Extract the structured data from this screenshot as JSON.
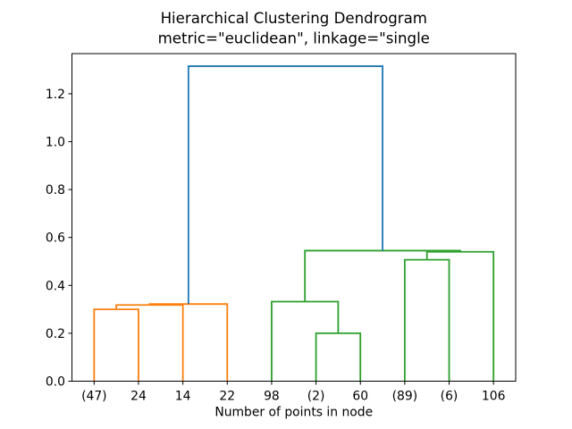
{
  "figure": {
    "title": "Hierarchical Clustering Dendrogram",
    "subtitle": "metric=\"euclidean\", linkage=\"single",
    "xlabel": "Number of points in node"
  },
  "chart_data": {
    "type": "dendrogram",
    "title": "Hierarchical Clustering Dendrogram",
    "subtitle": "metric=\"euclidean\", linkage=\"single",
    "xlabel": "Number of points in node",
    "ylabel": "",
    "ylim": [
      0,
      1.3675
    ],
    "yticks": [
      0.0,
      0.2,
      0.4,
      0.6,
      0.8,
      1.0,
      1.2
    ],
    "ytick_labels": [
      "0.0",
      "0.2",
      "0.4",
      "0.6",
      "0.8",
      "1.0",
      "1.2"
    ],
    "leaf_labels": [
      "(47)",
      "24",
      "14",
      "22",
      "98",
      "(2)",
      "60",
      "(89)",
      "(6)",
      "106"
    ],
    "grid": false,
    "legend": null,
    "colors": {
      "cluster_left": "#ff7f0e",
      "cluster_right": "#2ca02c",
      "root": "#1f77b4",
      "axis": "#000000",
      "background": "#ffffff"
    },
    "links": [
      {
        "x1": 0,
        "x2": 1,
        "height": 0.3,
        "base1": 0,
        "base2": 0,
        "color": "cluster_left"
      },
      {
        "x1": 0.5,
        "x2": 2,
        "height": 0.318,
        "base1": 0.3,
        "base2": 0,
        "color": "cluster_left"
      },
      {
        "x1": 1.25,
        "x2": 3,
        "height": 0.322,
        "base1": 0.318,
        "base2": 0,
        "color": "cluster_left"
      },
      {
        "x1": 5,
        "x2": 6,
        "height": 0.2,
        "base1": 0,
        "base2": 0,
        "color": "cluster_right"
      },
      {
        "x1": 4,
        "x2": 5.5,
        "height": 0.332,
        "base1": 0,
        "base2": 0.2,
        "color": "cluster_right"
      },
      {
        "x1": 7,
        "x2": 8,
        "height": 0.507,
        "base1": 0,
        "base2": 0,
        "color": "cluster_right"
      },
      {
        "x1": 7.5,
        "x2": 9,
        "height": 0.54,
        "base1": 0.507,
        "base2": 0,
        "color": "cluster_right"
      },
      {
        "x1": 4.75,
        "x2": 8.25,
        "height": 0.545,
        "base1": 0.332,
        "base2": 0.54,
        "color": "cluster_right"
      },
      {
        "x1": 2.125,
        "x2": 6.5,
        "height": 1.315,
        "base1": 0.322,
        "base2": 0.545,
        "color": "root"
      }
    ]
  }
}
